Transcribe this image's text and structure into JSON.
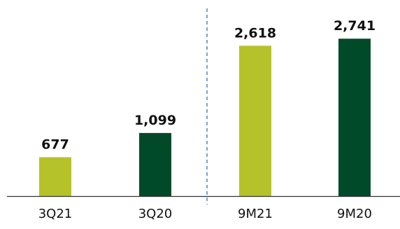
{
  "chart_data": {
    "type": "bar",
    "categories": [
      "3Q21",
      "3Q20",
      "9M21",
      "9M20"
    ],
    "values": [
      677,
      1099,
      2618,
      2741
    ],
    "value_labels": [
      "677",
      "1,099",
      "2,618",
      "2,741"
    ],
    "title": "",
    "xlabel": "",
    "ylabel": "",
    "ylim": [
      0,
      3000
    ],
    "grid": false,
    "legend": "none",
    "bar_colors": [
      "#b5c22a",
      "#004a29",
      "#b5c22a",
      "#004a29"
    ],
    "divider_after_category": 1,
    "divider_color": "#4a86c8",
    "axis_color": "#333333"
  }
}
